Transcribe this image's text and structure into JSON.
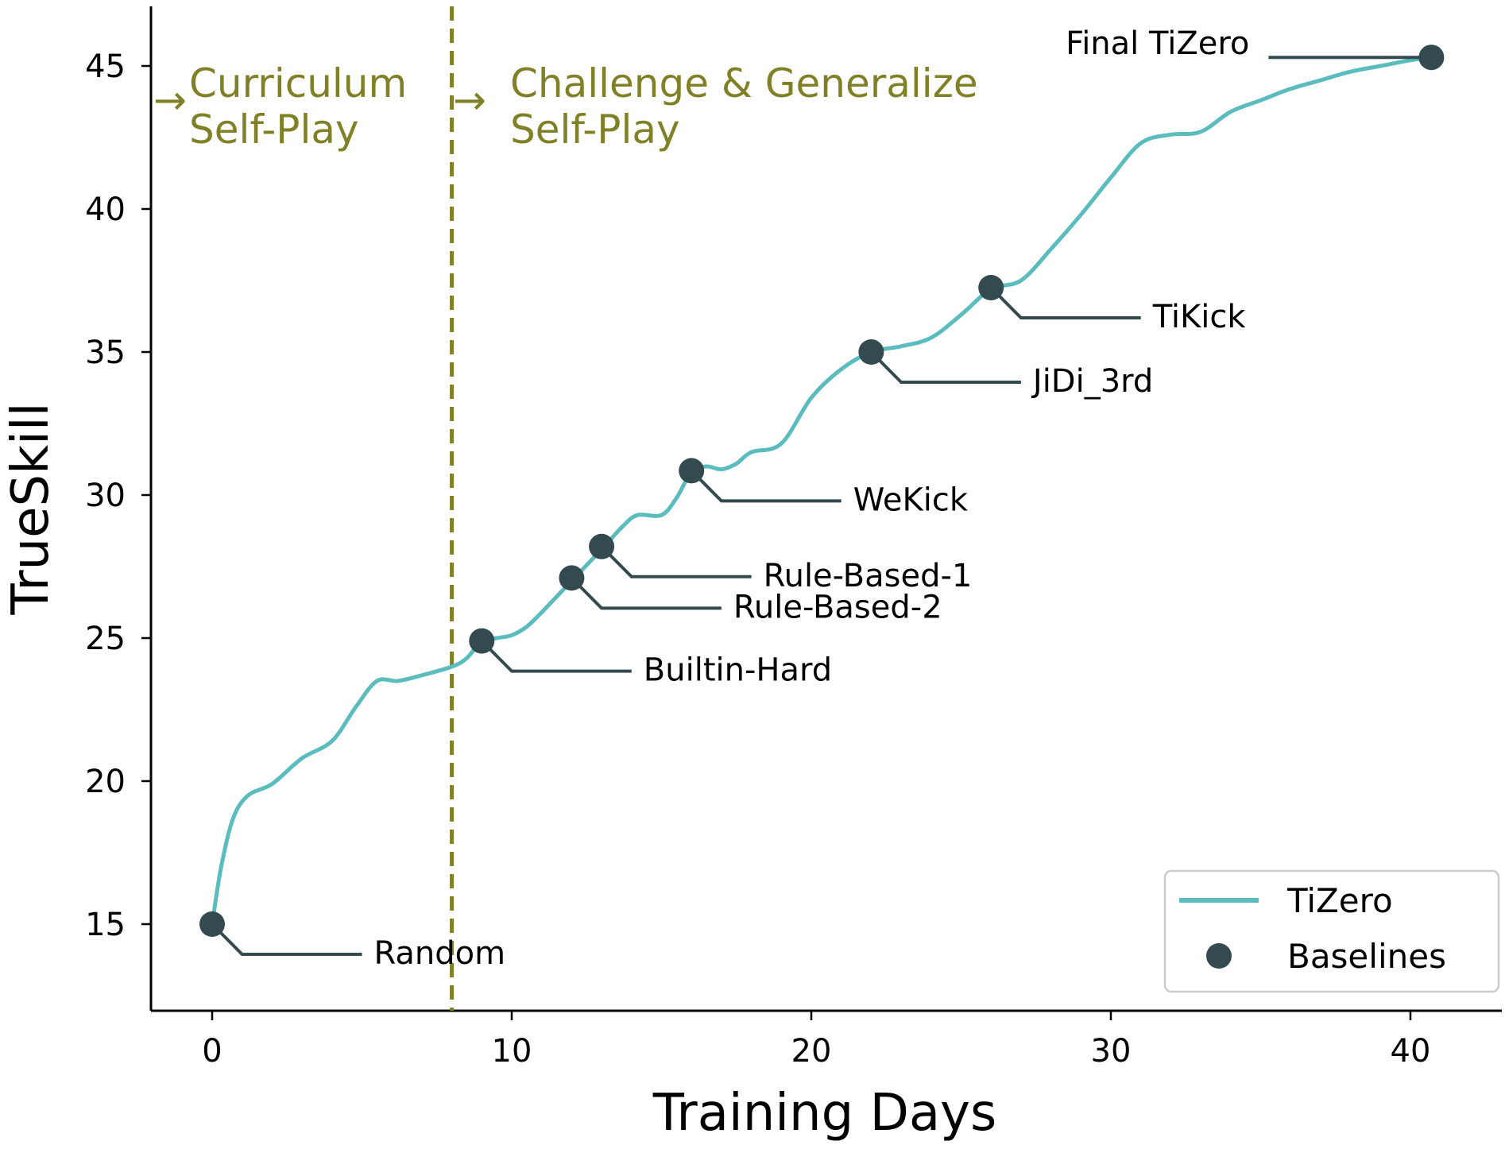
{
  "chart_data": {
    "type": "line",
    "xlabel": "Training Days",
    "ylabel": "TrueSkill",
    "xlim": [
      -2,
      43
    ],
    "ylim": [
      12.0,
      47.0
    ],
    "xticks": [
      0,
      10,
      20,
      30,
      40
    ],
    "yticks": [
      15,
      20,
      25,
      30,
      35,
      40,
      45
    ],
    "series": [
      {
        "name": "TiZero",
        "color": "#5bbcbd",
        "x": [
          0,
          0.3,
          0.7,
          1.2,
          2.0,
          3.0,
          4.0,
          4.8,
          5.5,
          6.2,
          7.0,
          8.0,
          8.5,
          9.0,
          9.5,
          10.0,
          10.5,
          11.0,
          12.0,
          13.0,
          13.7,
          14.2,
          15.0,
          15.5,
          16.0,
          16.5,
          17.0,
          17.5,
          18.0,
          19.0,
          20.0,
          21.0,
          22.0,
          23.0,
          24.0,
          25.0,
          26.0,
          27.0,
          28.0,
          29.0,
          30.0,
          31.0,
          32.0,
          33.0,
          34.0,
          35.0,
          36.0,
          37.0,
          38.0,
          39.0,
          40.0,
          40.7
        ],
        "y": [
          15.0,
          17.0,
          18.7,
          19.5,
          19.9,
          20.8,
          21.4,
          22.6,
          23.5,
          23.5,
          23.7,
          24.0,
          24.3,
          24.9,
          25.0,
          25.1,
          25.4,
          25.9,
          27.0,
          28.1,
          28.9,
          29.3,
          29.3,
          29.9,
          30.8,
          31.0,
          30.9,
          31.1,
          31.5,
          31.8,
          33.4,
          34.4,
          35.0,
          35.2,
          35.5,
          36.3,
          37.2,
          37.5,
          38.6,
          39.8,
          41.1,
          42.3,
          42.6,
          42.7,
          43.4,
          43.8,
          44.2,
          44.5,
          44.8,
          45.0,
          45.2,
          45.3
        ]
      },
      {
        "name": "Baselines",
        "color": "#334a4e",
        "points": [
          {
            "label": "Random",
            "x": 0,
            "y": 15.0
          },
          {
            "label": "Builtin-Hard",
            "x": 9,
            "y": 24.9
          },
          {
            "label": "Rule-Based-2",
            "x": 12,
            "y": 27.1
          },
          {
            "label": "Rule-Based-1",
            "x": 13,
            "y": 28.2
          },
          {
            "label": "WeKick",
            "x": 16,
            "y": 30.85
          },
          {
            "label": "JiDi_3rd",
            "x": 22,
            "y": 35.0
          },
          {
            "label": "TiKick",
            "x": 26,
            "y": 37.25
          },
          {
            "label": "Final TiZero",
            "x": 40.7,
            "y": 45.3
          }
        ]
      }
    ],
    "phase_divider": {
      "x": 8,
      "color": "#808026"
    },
    "phases": [
      {
        "line1": "Curriculum",
        "line2": "Self-Play"
      },
      {
        "line1": "Challenge & Generalize",
        "line2": "Self-Play"
      }
    ],
    "phase_arrow_glyph": "→",
    "legend": {
      "position": "lower right",
      "entries": [
        {
          "label": "TiZero",
          "kind": "line"
        },
        {
          "label": "Baselines",
          "kind": "marker"
        }
      ]
    },
    "grid": false
  }
}
